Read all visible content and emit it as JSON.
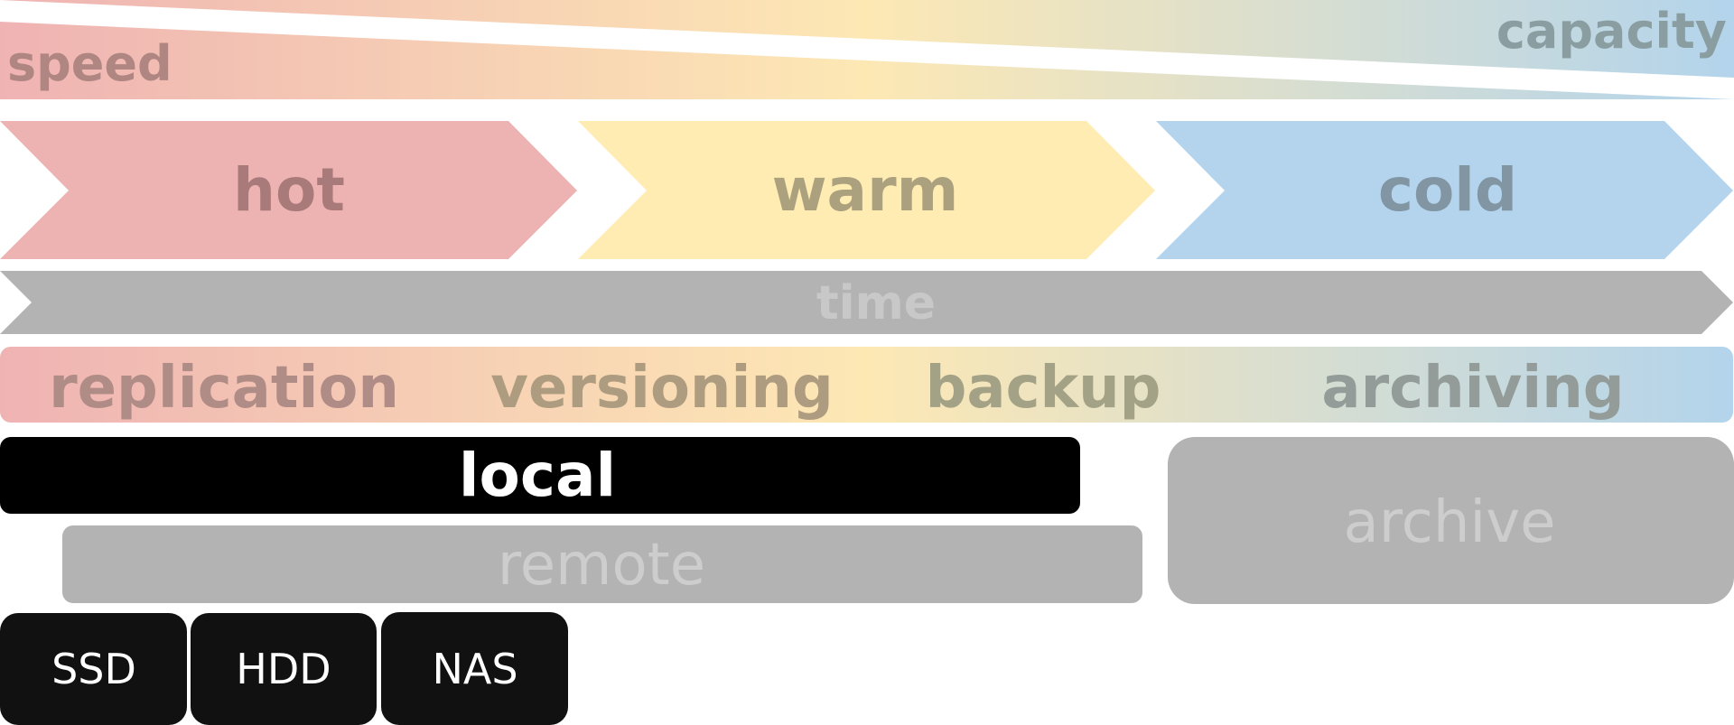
{
  "wedges": {
    "capacity_label": "capacity",
    "speed_label": "speed"
  },
  "tiers": {
    "hot_label": "hot",
    "warm_label": "warm",
    "cold_label": "cold"
  },
  "timeline": {
    "label": "time"
  },
  "strategies": {
    "replication": "replication",
    "versioning": "versioning",
    "backup": "backup",
    "archiving": "archiving"
  },
  "locations": {
    "local": "local",
    "remote": "remote",
    "archive": "archive"
  },
  "devices": {
    "ssd": "SSD",
    "hdd": "HDD",
    "nas": "NAS"
  },
  "colors": {
    "hot": "#edb2b2",
    "warm": "#ffecb3",
    "cold": "#b3d4ec",
    "gray": "#b3b3b3",
    "local": "#000000",
    "device": "#111111"
  }
}
